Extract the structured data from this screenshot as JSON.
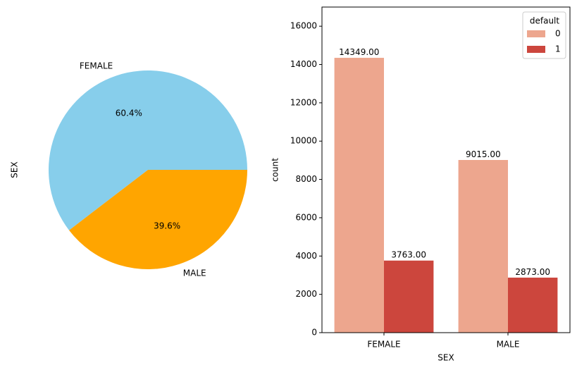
{
  "chart_data": [
    {
      "type": "pie",
      "ylabel": "SEX",
      "labels": [
        "FEMALE",
        "MALE"
      ],
      "values": [
        60.4,
        39.6
      ],
      "autopct": [
        "60.4%",
        "39.6%"
      ],
      "colors": [
        "#87ceeb",
        "#ffa500"
      ],
      "start_angle_deg": 0,
      "direction": "counterclockwise"
    },
    {
      "type": "bar",
      "xlabel": "SEX",
      "ylabel": "count",
      "categories": [
        "FEMALE",
        "MALE"
      ],
      "ylim": [
        0,
        17000
      ],
      "yticks": [
        0,
        2000,
        4000,
        6000,
        8000,
        10000,
        12000,
        14000,
        16000
      ],
      "grid": false,
      "legend": {
        "title": "default",
        "placement": "top-right"
      },
      "series": [
        {
          "name": "0",
          "color": "#eda68e",
          "values": [
            14349,
            9015
          ],
          "labels": [
            "14349.00",
            "9015.00"
          ]
        },
        {
          "name": "1",
          "color": "#cc463d",
          "values": [
            3763,
            2873
          ],
          "labels": [
            "3763.00",
            "2873.00"
          ]
        }
      ]
    }
  ]
}
